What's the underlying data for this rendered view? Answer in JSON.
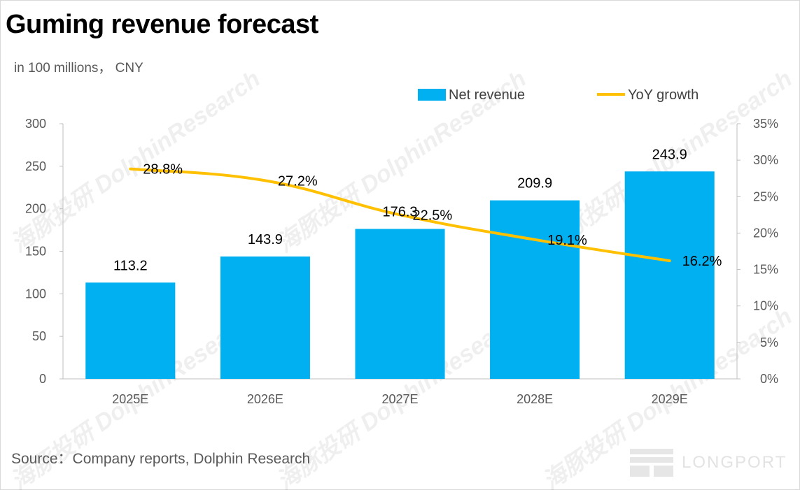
{
  "title": "Guming revenue forecast",
  "unit_note": "in 100 millions， CNY",
  "source": "Source：Company reports, Dolphin Research",
  "brand": "LONGPORT",
  "watermark": "海豚投研 DolphinResearch",
  "colors": {
    "bar": "#00b0f0",
    "line": "#ffc000"
  },
  "chart_data": {
    "type": "bar",
    "categories": [
      "2025E",
      "2026E",
      "2027E",
      "2028E",
      "2029E"
    ],
    "series": [
      {
        "name": "Net revenue",
        "type": "bar",
        "axis": "left",
        "values": [
          113.2,
          143.9,
          176.3,
          209.9,
          243.9
        ],
        "labels": [
          "113.2",
          "143.9",
          "176.3",
          "209.9",
          "243.9"
        ]
      },
      {
        "name": "YoY growth",
        "type": "line",
        "axis": "right",
        "values": [
          28.8,
          27.2,
          22.5,
          19.1,
          16.2
        ],
        "labels": [
          "28.8%",
          "27.2%",
          "22.5%",
          "19.1%",
          "16.2%"
        ]
      }
    ],
    "y_left": {
      "min": 0,
      "max": 300,
      "ticks": [
        "0",
        "50",
        "100",
        "150",
        "200",
        "250",
        "300"
      ]
    },
    "y_right": {
      "min": 0,
      "max": 35,
      "ticks": [
        "0%",
        "5%",
        "10%",
        "15%",
        "20%",
        "25%",
        "30%",
        "35%"
      ]
    },
    "legend": "top-right",
    "grid": false
  }
}
